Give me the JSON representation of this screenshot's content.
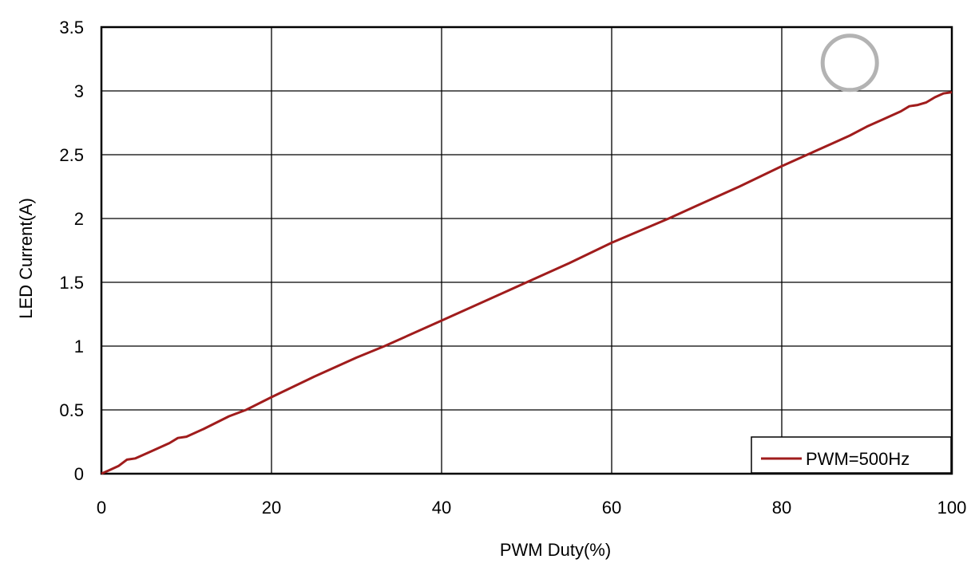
{
  "chart_data": {
    "type": "line",
    "title": "",
    "xlabel": "PWM Duty(%)",
    "ylabel": "LED Current(A)",
    "xlim": [
      0,
      100
    ],
    "ylim": [
      0,
      3.5
    ],
    "x_ticks": [
      "0",
      "20",
      "40",
      "60",
      "80",
      "100"
    ],
    "y_ticks": [
      "0",
      "0.5",
      "1",
      "1.5",
      "2",
      "2.5",
      "3",
      "3.5"
    ],
    "grid": true,
    "legend_position": "bottom-right",
    "series": [
      {
        "name": "PWM=500Hz",
        "color": "#a01c1c",
        "x": [
          0,
          1,
          2,
          3,
          4,
          5,
          6,
          8,
          9,
          10,
          12,
          15,
          17,
          20,
          25,
          30,
          33.3,
          40,
          45,
          50,
          55,
          60,
          66.7,
          70,
          75,
          80,
          83,
          86,
          88,
          90,
          92,
          94,
          95,
          96,
          97,
          98,
          99,
          100
        ],
        "y": [
          0,
          0.03,
          0.06,
          0.11,
          0.12,
          0.15,
          0.18,
          0.24,
          0.28,
          0.29,
          0.35,
          0.45,
          0.5,
          0.6,
          0.76,
          0.91,
          1.0,
          1.2,
          1.35,
          1.5,
          1.65,
          1.81,
          2.0,
          2.1,
          2.25,
          2.41,
          2.5,
          2.59,
          2.65,
          2.72,
          2.78,
          2.84,
          2.88,
          2.89,
          2.91,
          2.95,
          2.98,
          2.99
        ]
      }
    ]
  },
  "annotation": {
    "shape": "circle",
    "color": "#b3b3b3",
    "x": 88,
    "y": 3.22
  }
}
